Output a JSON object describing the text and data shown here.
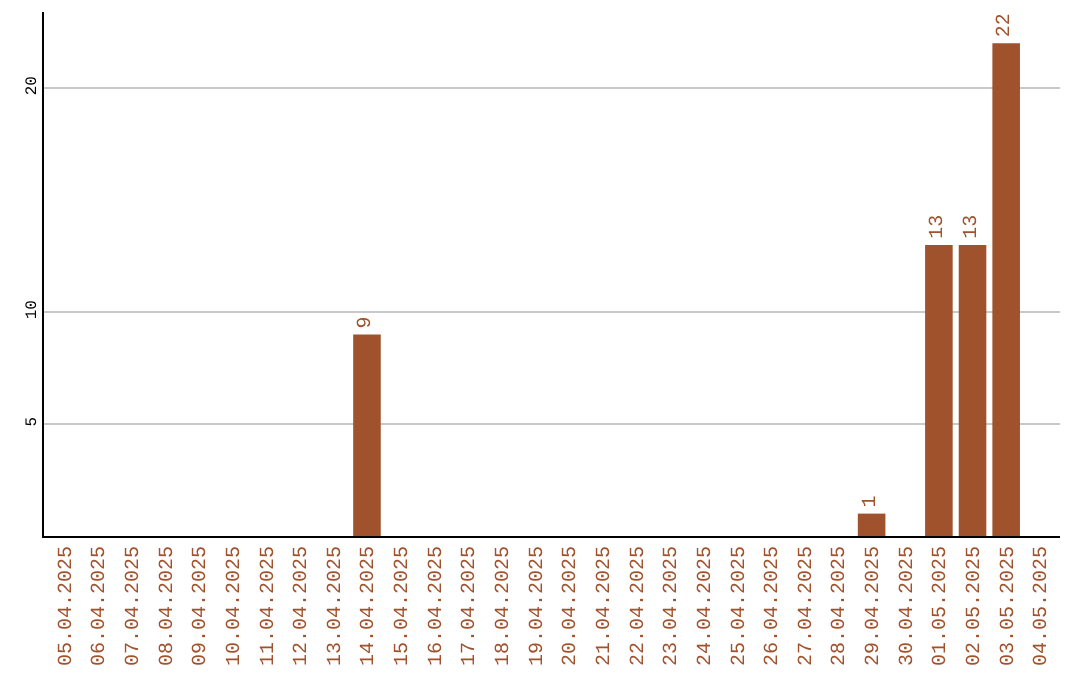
{
  "chart_data": {
    "type": "bar",
    "categories": [
      "05.04.2025",
      "06.04.2025",
      "07.04.2025",
      "08.04.2025",
      "09.04.2025",
      "10.04.2025",
      "11.04.2025",
      "12.04.2025",
      "13.04.2025",
      "14.04.2025",
      "15.04.2025",
      "16.04.2025",
      "17.04.2025",
      "18.04.2025",
      "19.04.2025",
      "20.04.2025",
      "21.04.2025",
      "22.04.2025",
      "23.04.2025",
      "24.04.2025",
      "25.04.2025",
      "26.04.2025",
      "27.04.2025",
      "28.04.2025",
      "29.04.2025",
      "30.04.2025",
      "01.05.2025",
      "02.05.2025",
      "03.05.2025",
      "04.05.2025"
    ],
    "values": [
      0,
      0,
      0,
      0,
      0,
      0,
      0,
      0,
      0,
      9,
      0,
      0,
      0,
      0,
      0,
      0,
      0,
      0,
      0,
      0,
      0,
      0,
      0,
      0,
      1,
      0,
      13,
      13,
      22,
      0
    ],
    "value_labels": [
      null,
      null,
      null,
      null,
      null,
      null,
      null,
      null,
      null,
      "9",
      null,
      null,
      null,
      null,
      null,
      null,
      null,
      null,
      null,
      null,
      null,
      null,
      null,
      null,
      "1",
      null,
      "13",
      "13",
      "22",
      null
    ],
    "color": "#a0522d",
    "ylim": [
      0,
      23.4
    ],
    "yticks": [
      5,
      10,
      20
    ],
    "grid": "y",
    "legend": false
  }
}
